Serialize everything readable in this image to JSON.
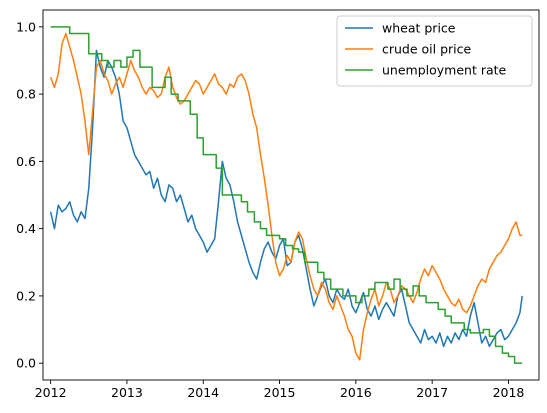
{
  "chart_data": {
    "type": "line",
    "title": "",
    "xlabel": "",
    "ylabel": "",
    "xlim": [
      2011.9,
      2018.4
    ],
    "ylim": [
      -0.05,
      1.05
    ],
    "x_ticks": [
      2012,
      2013,
      2014,
      2015,
      2016,
      2017,
      2018
    ],
    "x_tick_labels": [
      "2012",
      "2013",
      "2014",
      "2015",
      "2016",
      "2017",
      "2018"
    ],
    "y_ticks": [
      0.0,
      0.2,
      0.4,
      0.6,
      0.8,
      1.0
    ],
    "y_tick_labels": [
      "0.0",
      "0.2",
      "0.4",
      "0.6",
      "0.8",
      "1.0"
    ],
    "grid": false,
    "legend_position": "top-right",
    "series": [
      {
        "name": "wheat price",
        "color": "#1f77b4",
        "step": false,
        "x": [
          2012.0,
          2012.05,
          2012.1,
          2012.15,
          2012.2,
          2012.25,
          2012.3,
          2012.35,
          2012.4,
          2012.45,
          2012.5,
          2012.55,
          2012.6,
          2012.65,
          2012.7,
          2012.75,
          2012.8,
          2012.85,
          2012.9,
          2012.95,
          2013.0,
          2013.05,
          2013.1,
          2013.15,
          2013.2,
          2013.25,
          2013.3,
          2013.35,
          2013.4,
          2013.45,
          2013.5,
          2013.55,
          2013.6,
          2013.65,
          2013.7,
          2013.75,
          2013.8,
          2013.85,
          2013.9,
          2013.95,
          2014.0,
          2014.05,
          2014.1,
          2014.15,
          2014.2,
          2014.25,
          2014.3,
          2014.35,
          2014.4,
          2014.45,
          2014.5,
          2014.55,
          2014.6,
          2014.65,
          2014.7,
          2014.75,
          2014.8,
          2014.85,
          2014.9,
          2014.95,
          2015.0,
          2015.05,
          2015.1,
          2015.15,
          2015.2,
          2015.25,
          2015.3,
          2015.35,
          2015.4,
          2015.45,
          2015.5,
          2015.55,
          2015.6,
          2015.65,
          2015.7,
          2015.75,
          2015.8,
          2015.85,
          2015.9,
          2015.95,
          2016.0,
          2016.05,
          2016.1,
          2016.15,
          2016.2,
          2016.25,
          2016.3,
          2016.35,
          2016.4,
          2016.45,
          2016.5,
          2016.55,
          2016.6,
          2016.65,
          2016.7,
          2016.75,
          2016.8,
          2016.85,
          2016.9,
          2016.95,
          2017.0,
          2017.05,
          2017.1,
          2017.15,
          2017.2,
          2017.25,
          2017.3,
          2017.35,
          2017.4,
          2017.45,
          2017.5,
          2017.55,
          2017.6,
          2017.65,
          2017.7,
          2017.75,
          2017.8,
          2017.85,
          2017.9,
          2017.95,
          2018.0,
          2018.05,
          2018.1,
          2018.15,
          2018.18
        ],
        "y": [
          0.45,
          0.4,
          0.47,
          0.45,
          0.46,
          0.48,
          0.44,
          0.42,
          0.45,
          0.43,
          0.52,
          0.7,
          0.93,
          0.88,
          0.85,
          0.9,
          0.88,
          0.85,
          0.8,
          0.72,
          0.7,
          0.66,
          0.62,
          0.6,
          0.58,
          0.56,
          0.57,
          0.52,
          0.55,
          0.5,
          0.48,
          0.53,
          0.52,
          0.48,
          0.5,
          0.46,
          0.42,
          0.44,
          0.4,
          0.38,
          0.36,
          0.33,
          0.35,
          0.37,
          0.48,
          0.6,
          0.55,
          0.53,
          0.48,
          0.42,
          0.38,
          0.34,
          0.3,
          0.27,
          0.25,
          0.3,
          0.34,
          0.36,
          0.33,
          0.31,
          0.35,
          0.37,
          0.29,
          0.3,
          0.36,
          0.38,
          0.34,
          0.28,
          0.22,
          0.17,
          0.2,
          0.23,
          0.25,
          0.2,
          0.18,
          0.22,
          0.2,
          0.19,
          0.22,
          0.17,
          0.15,
          0.18,
          0.21,
          0.16,
          0.14,
          0.17,
          0.13,
          0.16,
          0.18,
          0.16,
          0.14,
          0.2,
          0.22,
          0.17,
          0.12,
          0.1,
          0.08,
          0.06,
          0.1,
          0.07,
          0.08,
          0.06,
          0.09,
          0.05,
          0.08,
          0.06,
          0.09,
          0.07,
          0.1,
          0.08,
          0.14,
          0.18,
          0.12,
          0.06,
          0.08,
          0.05,
          0.07,
          0.09,
          0.1,
          0.07,
          0.08,
          0.1,
          0.12,
          0.15,
          0.2
        ]
      },
      {
        "name": "crude oil price",
        "color": "#ff7f0e",
        "step": false,
        "x": [
          2012.0,
          2012.05,
          2012.1,
          2012.15,
          2012.2,
          2012.25,
          2012.3,
          2012.35,
          2012.4,
          2012.45,
          2012.5,
          2012.55,
          2012.6,
          2012.65,
          2012.7,
          2012.75,
          2012.8,
          2012.85,
          2012.9,
          2012.95,
          2013.0,
          2013.05,
          2013.1,
          2013.15,
          2013.2,
          2013.25,
          2013.3,
          2013.35,
          2013.4,
          2013.45,
          2013.5,
          2013.55,
          2013.6,
          2013.65,
          2013.7,
          2013.75,
          2013.8,
          2013.85,
          2013.9,
          2013.95,
          2014.0,
          2014.05,
          2014.1,
          2014.15,
          2014.2,
          2014.25,
          2014.3,
          2014.35,
          2014.4,
          2014.45,
          2014.5,
          2014.55,
          2014.6,
          2014.65,
          2014.7,
          2014.75,
          2014.8,
          2014.85,
          2014.9,
          2014.95,
          2015.0,
          2015.05,
          2015.1,
          2015.15,
          2015.2,
          2015.25,
          2015.3,
          2015.35,
          2015.4,
          2015.45,
          2015.5,
          2015.55,
          2015.6,
          2015.65,
          2015.7,
          2015.75,
          2015.8,
          2015.85,
          2015.9,
          2015.95,
          2016.0,
          2016.05,
          2016.1,
          2016.15,
          2016.2,
          2016.25,
          2016.3,
          2016.35,
          2016.4,
          2016.45,
          2016.5,
          2016.55,
          2016.6,
          2016.65,
          2016.7,
          2016.75,
          2016.8,
          2016.85,
          2016.9,
          2016.95,
          2017.0,
          2017.05,
          2017.1,
          2017.15,
          2017.2,
          2017.25,
          2017.3,
          2017.35,
          2017.4,
          2017.45,
          2017.5,
          2017.55,
          2017.6,
          2017.65,
          2017.7,
          2017.75,
          2017.8,
          2017.85,
          2017.9,
          2017.95,
          2018.0,
          2018.05,
          2018.1,
          2018.15,
          2018.18
        ],
        "y": [
          0.85,
          0.82,
          0.86,
          0.95,
          0.98,
          0.94,
          0.9,
          0.85,
          0.8,
          0.72,
          0.62,
          0.75,
          0.88,
          0.9,
          0.86,
          0.84,
          0.8,
          0.83,
          0.85,
          0.82,
          0.86,
          0.9,
          0.87,
          0.85,
          0.82,
          0.8,
          0.82,
          0.81,
          0.79,
          0.8,
          0.85,
          0.88,
          0.82,
          0.79,
          0.77,
          0.78,
          0.8,
          0.82,
          0.84,
          0.83,
          0.8,
          0.82,
          0.84,
          0.86,
          0.83,
          0.82,
          0.8,
          0.83,
          0.82,
          0.85,
          0.86,
          0.84,
          0.8,
          0.74,
          0.7,
          0.62,
          0.55,
          0.47,
          0.38,
          0.3,
          0.26,
          0.28,
          0.32,
          0.3,
          0.36,
          0.39,
          0.37,
          0.31,
          0.26,
          0.22,
          0.2,
          0.24,
          0.22,
          0.18,
          0.16,
          0.2,
          0.17,
          0.14,
          0.1,
          0.08,
          0.03,
          0.01,
          0.1,
          0.15,
          0.19,
          0.22,
          0.17,
          0.2,
          0.24,
          0.22,
          0.18,
          0.2,
          0.23,
          0.22,
          0.2,
          0.18,
          0.21,
          0.25,
          0.28,
          0.26,
          0.29,
          0.27,
          0.25,
          0.22,
          0.2,
          0.18,
          0.17,
          0.19,
          0.16,
          0.15,
          0.17,
          0.2,
          0.23,
          0.25,
          0.24,
          0.28,
          0.3,
          0.32,
          0.33,
          0.35,
          0.37,
          0.4,
          0.42,
          0.38,
          0.38
        ]
      },
      {
        "name": "unemployment rate",
        "color": "#2ca02c",
        "step": true,
        "x": [
          2012.0,
          2012.17,
          2012.25,
          2012.5,
          2012.67,
          2012.75,
          2012.83,
          2012.92,
          2013.0,
          2013.08,
          2013.17,
          2013.33,
          2013.5,
          2013.58,
          2013.67,
          2013.83,
          2013.92,
          2014.0,
          2014.17,
          2014.25,
          2014.42,
          2014.5,
          2014.58,
          2014.67,
          2014.75,
          2014.83,
          2014.92,
          2015.0,
          2015.08,
          2015.17,
          2015.25,
          2015.33,
          2015.42,
          2015.5,
          2015.58,
          2015.67,
          2015.83,
          2016.0,
          2016.08,
          2016.17,
          2016.25,
          2016.42,
          2016.5,
          2016.58,
          2016.67,
          2016.75,
          2016.83,
          2016.92,
          2017.0,
          2017.08,
          2017.17,
          2017.25,
          2017.42,
          2017.5,
          2017.67,
          2017.75,
          2017.83,
          2017.92,
          2018.0,
          2018.08,
          2018.18
        ],
        "y": [
          1.0,
          1.0,
          0.98,
          0.92,
          0.9,
          0.88,
          0.9,
          0.88,
          0.91,
          0.93,
          0.88,
          0.82,
          0.85,
          0.8,
          0.78,
          0.74,
          0.67,
          0.62,
          0.58,
          0.5,
          0.5,
          0.48,
          0.45,
          0.42,
          0.4,
          0.38,
          0.38,
          0.37,
          0.35,
          0.34,
          0.33,
          0.3,
          0.3,
          0.27,
          0.25,
          0.22,
          0.2,
          0.18,
          0.2,
          0.22,
          0.24,
          0.22,
          0.25,
          0.22,
          0.2,
          0.23,
          0.2,
          0.18,
          0.18,
          0.16,
          0.14,
          0.12,
          0.1,
          0.09,
          0.1,
          0.08,
          0.05,
          0.03,
          0.02,
          0.0,
          0.0
        ]
      }
    ]
  }
}
